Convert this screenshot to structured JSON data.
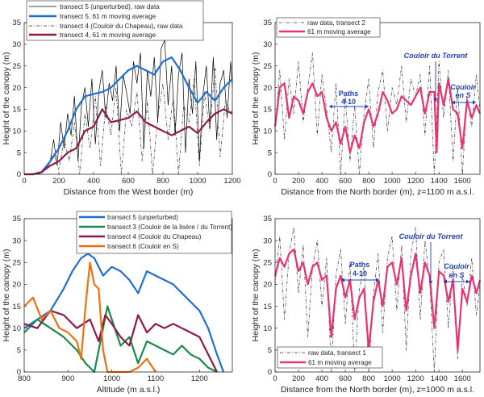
{
  "chart_data": [
    {
      "id": "tl",
      "type": "line",
      "xlabel": "Distance from the West border (m)",
      "ylabel": "Height of the canopy (m)",
      "xlim": [
        0,
        1200
      ],
      "ylim": [
        0,
        35
      ],
      "xticks": [
        0,
        200,
        400,
        600,
        800,
        1000,
        1200
      ],
      "yticks": [
        0,
        5,
        10,
        15,
        20,
        25,
        30,
        35
      ],
      "legend_position": "top-left",
      "legend": [
        {
          "key": "raw5",
          "label": "transect 5 (unperturbed), raw data"
        },
        {
          "key": "ma5",
          "label": "transect 5, 61 m moving average"
        },
        {
          "key": "raw4",
          "label": "transect 4 (Couloir du Chapeau), raw data",
          "italic_part": "Couloir du Chapeau"
        },
        {
          "key": "ma4",
          "label": "transect 4, 61 m moving average"
        }
      ],
      "series": [
        {
          "name": "transect 5, 61 m moving average",
          "key": "ma5",
          "color": "#1f6fd1",
          "x": [
            0,
            50,
            100,
            150,
            200,
            250,
            300,
            350,
            400,
            450,
            500,
            550,
            600,
            650,
            700,
            750,
            800,
            850,
            900,
            950,
            1000,
            1050,
            1100,
            1150,
            1200
          ],
          "y": [
            0,
            0,
            0.5,
            3,
            6,
            10,
            15,
            18,
            18.5,
            19,
            20,
            22,
            24,
            25,
            24,
            23,
            26,
            27,
            24,
            20,
            16.5,
            19,
            17,
            20,
            22
          ]
        },
        {
          "name": "transect 4, 61 m moving average",
          "key": "ma4",
          "color": "#8b1a4a",
          "x": [
            0,
            50,
            100,
            150,
            200,
            250,
            300,
            350,
            400,
            450,
            500,
            550,
            600,
            650,
            700,
            750,
            800,
            850,
            900,
            950,
            1000,
            1050,
            1100,
            1150,
            1200
          ],
          "y": [
            0,
            0,
            0.5,
            2,
            3,
            5,
            6,
            10,
            11,
            15,
            12,
            12.5,
            13,
            14.5,
            12,
            11,
            10,
            9,
            10,
            11,
            9.5,
            12,
            14,
            15,
            14
          ]
        },
        {
          "name": "transect 5 (unperturbed), raw data",
          "key": "raw5",
          "color": "#000000",
          "x": [
            0,
            80,
            120,
            150,
            170,
            190,
            210,
            230,
            250,
            270,
            290,
            310,
            330,
            350,
            370,
            390,
            410,
            430,
            450,
            470,
            490,
            510,
            530,
            550,
            570,
            590,
            610,
            630,
            650,
            670,
            690,
            710,
            730,
            750,
            770,
            790,
            810,
            830,
            850,
            870,
            890,
            910,
            930,
            950,
            970,
            990,
            1010,
            1030,
            1050,
            1070,
            1090,
            1110,
            1130,
            1150,
            1170,
            1190,
            1200
          ],
          "y": [
            0,
            0,
            1,
            3,
            8,
            2,
            12,
            6,
            14,
            9,
            18,
            3,
            16,
            20,
            11,
            22,
            7,
            19,
            24,
            13,
            21,
            17,
            25,
            10,
            23,
            19,
            14,
            26,
            21,
            28,
            6,
            24,
            18,
            27,
            12,
            29,
            31,
            16,
            25,
            9,
            23,
            28,
            5,
            22,
            14,
            26,
            3,
            18,
            25,
            11,
            27,
            8,
            21,
            24,
            13,
            26,
            20
          ]
        },
        {
          "name": "transect 4 (Couloir du Chapeau), raw data",
          "key": "raw4",
          "color": "#333333",
          "x": [
            0,
            100,
            140,
            170,
            200,
            230,
            260,
            290,
            320,
            350,
            380,
            410,
            440,
            470,
            500,
            530,
            560,
            590,
            620,
            650,
            680,
            710,
            740,
            770,
            800,
            830,
            860,
            890,
            920,
            950,
            980,
            1010,
            1040,
            1070,
            1100,
            1130,
            1160,
            1190,
            1200
          ],
          "y": [
            0,
            0,
            2,
            5,
            1,
            8,
            3,
            12,
            0,
            14,
            6,
            18,
            2,
            16,
            9,
            20,
            0,
            15,
            11,
            19,
            3,
            17,
            0,
            13,
            21,
            8,
            18,
            0,
            16,
            12,
            22,
            2,
            19,
            10,
            25,
            4,
            17,
            14,
            15
          ]
        }
      ]
    },
    {
      "id": "tr",
      "type": "line",
      "xlabel": "Distance from the North border (m), z=1100 m a.s.l.",
      "ylabel": "Height of the canopy (m)",
      "xlim": [
        0,
        1750
      ],
      "ylim": [
        0,
        35
      ],
      "xticks": [
        0,
        200,
        400,
        600,
        800,
        1000,
        1200,
        1400,
        1600
      ],
      "yticks": [
        0,
        5,
        10,
        15,
        20,
        25,
        30,
        35
      ],
      "legend_position": "top-left",
      "legend": [
        {
          "key": "raw2",
          "label": "raw data, transect 2"
        },
        {
          "key": "ma2",
          "label": "61 m moving average"
        }
      ],
      "series": [
        {
          "name": "raw data, transect 2",
          "key": "raw2",
          "color": "#333333",
          "x": [
            0,
            40,
            80,
            120,
            160,
            200,
            240,
            280,
            320,
            360,
            400,
            440,
            480,
            520,
            560,
            600,
            640,
            680,
            720,
            760,
            800,
            840,
            880,
            920,
            960,
            1000,
            1040,
            1080,
            1120,
            1160,
            1200,
            1240,
            1280,
            1320,
            1360,
            1400,
            1440,
            1480,
            1520,
            1560,
            1600,
            1640,
            1680,
            1720,
            1750
          ],
          "y": [
            10,
            24,
            8,
            22,
            14,
            26,
            12,
            20,
            28,
            9,
            23,
            15,
            5,
            21,
            0,
            18,
            3,
            16,
            0,
            14,
            22,
            6,
            19,
            24,
            10,
            20,
            16,
            25,
            12,
            22,
            18,
            23,
            9,
            25,
            0,
            26,
            13,
            24,
            3,
            20,
            0,
            18,
            11,
            23,
            15
          ]
        },
        {
          "name": "61 m moving average",
          "key": "ma2",
          "color": "#e8336f",
          "x": [
            0,
            40,
            80,
            120,
            160,
            200,
            240,
            280,
            320,
            360,
            400,
            440,
            480,
            520,
            560,
            600,
            640,
            680,
            720,
            760,
            800,
            840,
            880,
            920,
            960,
            1000,
            1040,
            1080,
            1120,
            1160,
            1200,
            1240,
            1280,
            1320,
            1360,
            1380,
            1400,
            1440,
            1480,
            1520,
            1560,
            1600,
            1640,
            1680,
            1720,
            1750
          ],
          "y": [
            11,
            20,
            21,
            13,
            18,
            17,
            14,
            19,
            21,
            18,
            19,
            13,
            10,
            12,
            7,
            11,
            5,
            9,
            6,
            12,
            15,
            11,
            14,
            19,
            17,
            14,
            15,
            18,
            17,
            16,
            18,
            20,
            14,
            19,
            19,
            5,
            21,
            16,
            22,
            15,
            14,
            6,
            17,
            13,
            16,
            14
          ]
        }
      ]
    },
    {
      "id": "bl",
      "type": "line",
      "xlabel": "Altitude (m a.s.l.)",
      "ylabel": "Height of the canopy (m)",
      "xlim": [
        800,
        1275
      ],
      "ylim": [
        0,
        35
      ],
      "xticks": [
        800,
        900,
        1000,
        1100,
        1200
      ],
      "yticks": [
        0,
        5,
        10,
        15,
        20,
        25,
        30,
        35
      ],
      "legend_position": "top-center",
      "legend": [
        {
          "key": "t5",
          "label": "transect 5 (unperturbed)"
        },
        {
          "key": "t3",
          "label": "transect 3 (Couloir de la lisère / du Torrent)",
          "italic_part": "Couloir de la lisère / du Torrent"
        },
        {
          "key": "t4",
          "label": "transect 4 (Couloir du Chapeau)",
          "italic_part": "Couloir du Chapeau"
        },
        {
          "key": "t6",
          "label": "transect 6 (Couloir en S)",
          "italic_part": "Couloir en S"
        }
      ],
      "series": [
        {
          "name": "transect 5 (unperturbed)",
          "key": "t5",
          "color": "#1f6fd1",
          "x": [
            800,
            830,
            860,
            890,
            910,
            930,
            945,
            960,
            980,
            1000,
            1020,
            1040,
            1060,
            1080,
            1100,
            1120,
            1140,
            1160,
            1180,
            1200,
            1220,
            1240,
            1255
          ],
          "y": [
            10,
            12,
            14,
            19,
            23,
            26,
            27,
            26,
            22,
            24,
            23,
            21,
            18,
            23,
            22,
            21,
            20,
            18,
            16,
            14,
            10,
            4,
            0
          ]
        },
        {
          "name": "transect 3 (Couloir de la lisère / du Torrent)",
          "key": "t3",
          "color": "#1a8a4a",
          "x": [
            800,
            830,
            860,
            890,
            920,
            940,
            960,
            980,
            990,
            1000,
            1020,
            1040,
            1060,
            1080,
            1100,
            1120,
            1140,
            1160,
            1180,
            1200,
            1220,
            1240
          ],
          "y": [
            9,
            12,
            10,
            8,
            5,
            2,
            0,
            10,
            15,
            12,
            6,
            8,
            2,
            7,
            6,
            5,
            4,
            6,
            4,
            3,
            1,
            0
          ]
        },
        {
          "name": "transect 4 (Couloir du Chapeau)",
          "key": "t4",
          "color": "#8b1a4a",
          "x": [
            800,
            830,
            860,
            890,
            920,
            950,
            970,
            985,
            1000,
            1020,
            1040,
            1060,
            1080,
            1100,
            1120,
            1140,
            1160,
            1180,
            1200,
            1220,
            1240
          ],
          "y": [
            11,
            10,
            14,
            13,
            10,
            12,
            7,
            13,
            11,
            8,
            6,
            13,
            9,
            11,
            10,
            11,
            10,
            9,
            8,
            4,
            0
          ]
        },
        {
          "name": "transect 6 (Couloir en S)",
          "key": "t6",
          "color": "#f07010",
          "x": [
            800,
            820,
            840,
            860,
            880,
            900,
            920,
            930,
            940,
            950,
            960,
            970,
            980,
            990,
            1000,
            1020,
            1040,
            1060,
            1080,
            1100
          ],
          "y": [
            15,
            17,
            12,
            14,
            10,
            9,
            7,
            3,
            15,
            25,
            20,
            19,
            5,
            0,
            0,
            0,
            0,
            1,
            3,
            0
          ]
        }
      ]
    },
    {
      "id": "br",
      "type": "line",
      "xlabel": "Distance from the North border (m), z=1000 m a.s.l.",
      "ylabel": "Height of the canopy (m)",
      "xlim": [
        0,
        1750
      ],
      "ylim": [
        0,
        35
      ],
      "xticks": [
        0,
        200,
        400,
        600,
        800,
        1000,
        1200,
        1400,
        1600
      ],
      "yticks": [
        0,
        5,
        10,
        15,
        20,
        25,
        30,
        35
      ],
      "legend_position": "bottom-left",
      "legend": [
        {
          "key": "raw1",
          "label": "raw data, transect 1"
        },
        {
          "key": "ma1",
          "label": "61 m moving average"
        }
      ],
      "series": [
        {
          "name": "raw data, transect 1",
          "key": "raw1",
          "color": "#333333",
          "x": [
            0,
            40,
            80,
            120,
            160,
            200,
            240,
            280,
            320,
            360,
            400,
            440,
            480,
            520,
            560,
            600,
            640,
            680,
            720,
            760,
            800,
            840,
            880,
            920,
            960,
            1000,
            1040,
            1080,
            1120,
            1160,
            1200,
            1240,
            1280,
            1320,
            1360,
            1400,
            1440,
            1480,
            1520,
            1560,
            1600,
            1640,
            1680,
            1720,
            1750
          ],
          "y": [
            20,
            31,
            12,
            27,
            33,
            18,
            29,
            8,
            24,
            30,
            15,
            26,
            0,
            22,
            28,
            11,
            25,
            0,
            19,
            24,
            0,
            18,
            27,
            9,
            26,
            31,
            14,
            29,
            5,
            27,
            33,
            12,
            30,
            21,
            0,
            25,
            28,
            10,
            24,
            3,
            22,
            15,
            26,
            13,
            20
          ]
        },
        {
          "name": "61 m moving average",
          "key": "ma1",
          "color": "#e8336f",
          "x": [
            0,
            40,
            80,
            120,
            160,
            200,
            240,
            280,
            320,
            360,
            400,
            440,
            480,
            520,
            560,
            600,
            640,
            680,
            720,
            760,
            800,
            840,
            880,
            920,
            960,
            1000,
            1040,
            1080,
            1120,
            1160,
            1200,
            1240,
            1280,
            1320,
            1360,
            1400,
            1440,
            1480,
            1520,
            1560,
            1600,
            1640,
            1680,
            1720,
            1750
          ],
          "y": [
            22,
            26,
            24,
            27,
            28,
            23,
            25,
            20,
            24,
            25,
            21,
            22,
            8,
            19,
            22,
            17,
            21,
            12,
            17,
            19,
            5,
            16,
            21,
            15,
            24,
            25,
            20,
            26,
            14,
            22,
            27,
            18,
            25,
            22,
            10,
            23,
            22,
            16,
            21,
            5,
            19,
            16,
            22,
            18,
            21
          ]
        }
      ]
    }
  ],
  "annotations": {
    "tr_paths": "Paths",
    "tr_paths_range": "4-10",
    "tr_torrent": "Couloir du Torrent",
    "tr_couloir": "Couloir",
    "tr_en_s": "en S",
    "br_paths": "Paths",
    "br_paths_range": "4-10",
    "br_torrent": "Couloir du Torrent",
    "br_couloir": "Couloir",
    "br_en_s": "en S"
  }
}
